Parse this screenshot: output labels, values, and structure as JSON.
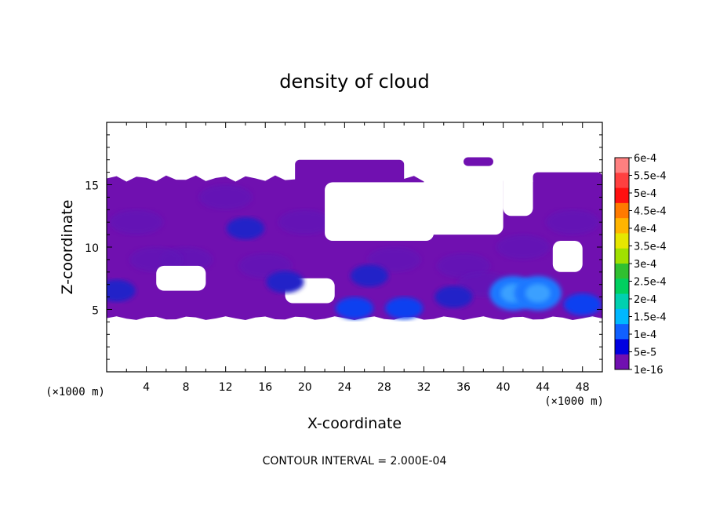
{
  "chart_data": {
    "type": "heatmap",
    "title": "density of cloud",
    "xlabel": "X-coordinate",
    "ylabel": "Z-coordinate",
    "x_unit_left": "(×1000 m)",
    "x_unit_right": "(×1000 m)",
    "xlim": [
      0,
      50
    ],
    "ylim": [
      0,
      20
    ],
    "x_ticks": [
      4,
      8,
      12,
      16,
      20,
      24,
      28,
      32,
      36,
      40,
      44,
      48
    ],
    "x_tick_labels": [
      "4",
      "8",
      "12",
      "16",
      "20",
      "24",
      "28",
      "32",
      "36",
      "40",
      "44",
      "48"
    ],
    "y_ticks": [
      5,
      10,
      15
    ],
    "y_tick_labels": [
      "5",
      "10",
      "15"
    ],
    "footer": "CONTOUR INTERVAL = 2.000E-04",
    "colorbar": {
      "labels": [
        "6e-4",
        "5.5e-4",
        "5e-4",
        "4.5e-4",
        "4e-4",
        "3.5e-4",
        "3e-4",
        "2.5e-4",
        "2e-4",
        "1.5e-4",
        "1e-4",
        "5e-5",
        "1e-16"
      ],
      "colors": [
        "#ff8080",
        "#ff4040",
        "#ff1010",
        "#ff7a00",
        "#ffb400",
        "#e6e600",
        "#a0e000",
        "#30c030",
        "#00d060",
        "#00d0b0",
        "#00b8ff",
        "#1060ff",
        "#0000e0",
        "#7010b0"
      ]
    },
    "cloud_field": {
      "background_color": "#7010b0",
      "cloud_top_base": 15.5,
      "cloud_base": 4.3,
      "clear_gaps": [
        {
          "x": [
            22,
            33
          ],
          "z": [
            10.5,
            15.2
          ]
        },
        {
          "x": [
            32,
            40
          ],
          "z": [
            11.0,
            16.0
          ]
        },
        {
          "x": [
            40,
            43
          ],
          "z": [
            12.5,
            17.0
          ]
        },
        {
          "x": [
            5,
            10
          ],
          "z": [
            6.5,
            8.5
          ]
        },
        {
          "x": [
            18,
            23
          ],
          "z": [
            5.5,
            7.5
          ]
        },
        {
          "x": [
            45,
            48
          ],
          "z": [
            8.0,
            10.5
          ]
        }
      ],
      "cloud_extensions": [
        {
          "x": [
            19,
            30
          ],
          "z": [
            15.0,
            17.0
          ]
        },
        {
          "x": [
            36,
            39
          ],
          "z": [
            16.5,
            17.2
          ]
        },
        {
          "x": [
            43,
            50
          ],
          "z": [
            15.0,
            16.0
          ]
        }
      ],
      "cores": [
        {
          "x": 41,
          "z": 6.3,
          "level": 0.00015
        },
        {
          "x": 43.5,
          "z": 6.3,
          "level": 0.00015
        },
        {
          "x": 48,
          "z": 5.4,
          "level": 0.0001
        },
        {
          "x": 25,
          "z": 5.1,
          "level": 0.0001
        },
        {
          "x": 30,
          "z": 5.1,
          "level": 0.0001
        },
        {
          "x": 26.5,
          "z": 7.7,
          "level": 5e-05
        },
        {
          "x": 18,
          "z": 7.2,
          "level": 5e-05
        },
        {
          "x": 1,
          "z": 6.5,
          "level": 5e-05
        },
        {
          "x": 14,
          "z": 11.5,
          "level": 5e-05
        },
        {
          "x": 35,
          "z": 6.0,
          "level": 5e-05
        }
      ]
    }
  }
}
